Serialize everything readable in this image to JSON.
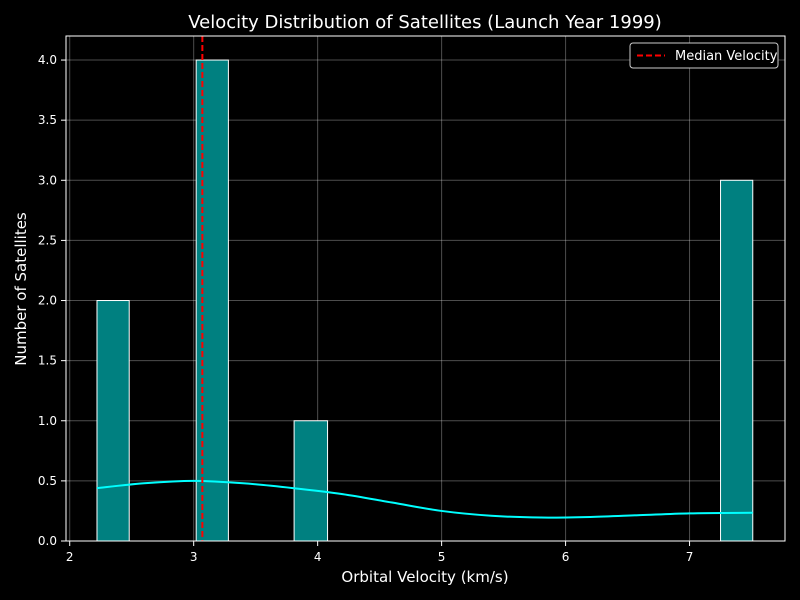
{
  "chart_data": {
    "type": "bar",
    "title": "Velocity Distribution of Satellites (Launch Year 1999)",
    "xlabel": "Orbital Velocity (km/s)",
    "ylabel": "Number of Satellites",
    "xlim": [
      1.97,
      7.77
    ],
    "ylim": [
      0,
      4.2
    ],
    "xticks": [
      2,
      3,
      4,
      5,
      6,
      7
    ],
    "yticks": [
      0.0,
      0.5,
      1.0,
      1.5,
      2.0,
      2.5,
      3.0,
      3.5,
      4.0
    ],
    "grid": true,
    "legend_position": "top-right",
    "bins": [
      {
        "start": 2.22,
        "end": 2.48,
        "count": 2
      },
      {
        "start": 3.02,
        "end": 3.28,
        "count": 4
      },
      {
        "start": 3.81,
        "end": 4.08,
        "count": 1
      },
      {
        "start": 7.25,
        "end": 7.51,
        "count": 3
      }
    ],
    "median": {
      "label": "Median Velocity",
      "value": 3.07,
      "color": "#ff0000"
    },
    "kde": {
      "x": [
        2.22,
        2.6,
        3.0,
        3.4,
        3.8,
        4.2,
        4.6,
        5.0,
        5.4,
        5.8,
        6.2,
        6.6,
        7.0,
        7.51
      ],
      "y": [
        0.44,
        0.48,
        0.5,
        0.48,
        0.44,
        0.39,
        0.32,
        0.25,
        0.21,
        0.195,
        0.2,
        0.215,
        0.23,
        0.235
      ],
      "color": "#00ffff"
    },
    "bar_color": "#008080",
    "bar_edge_color": "#ffffff"
  }
}
